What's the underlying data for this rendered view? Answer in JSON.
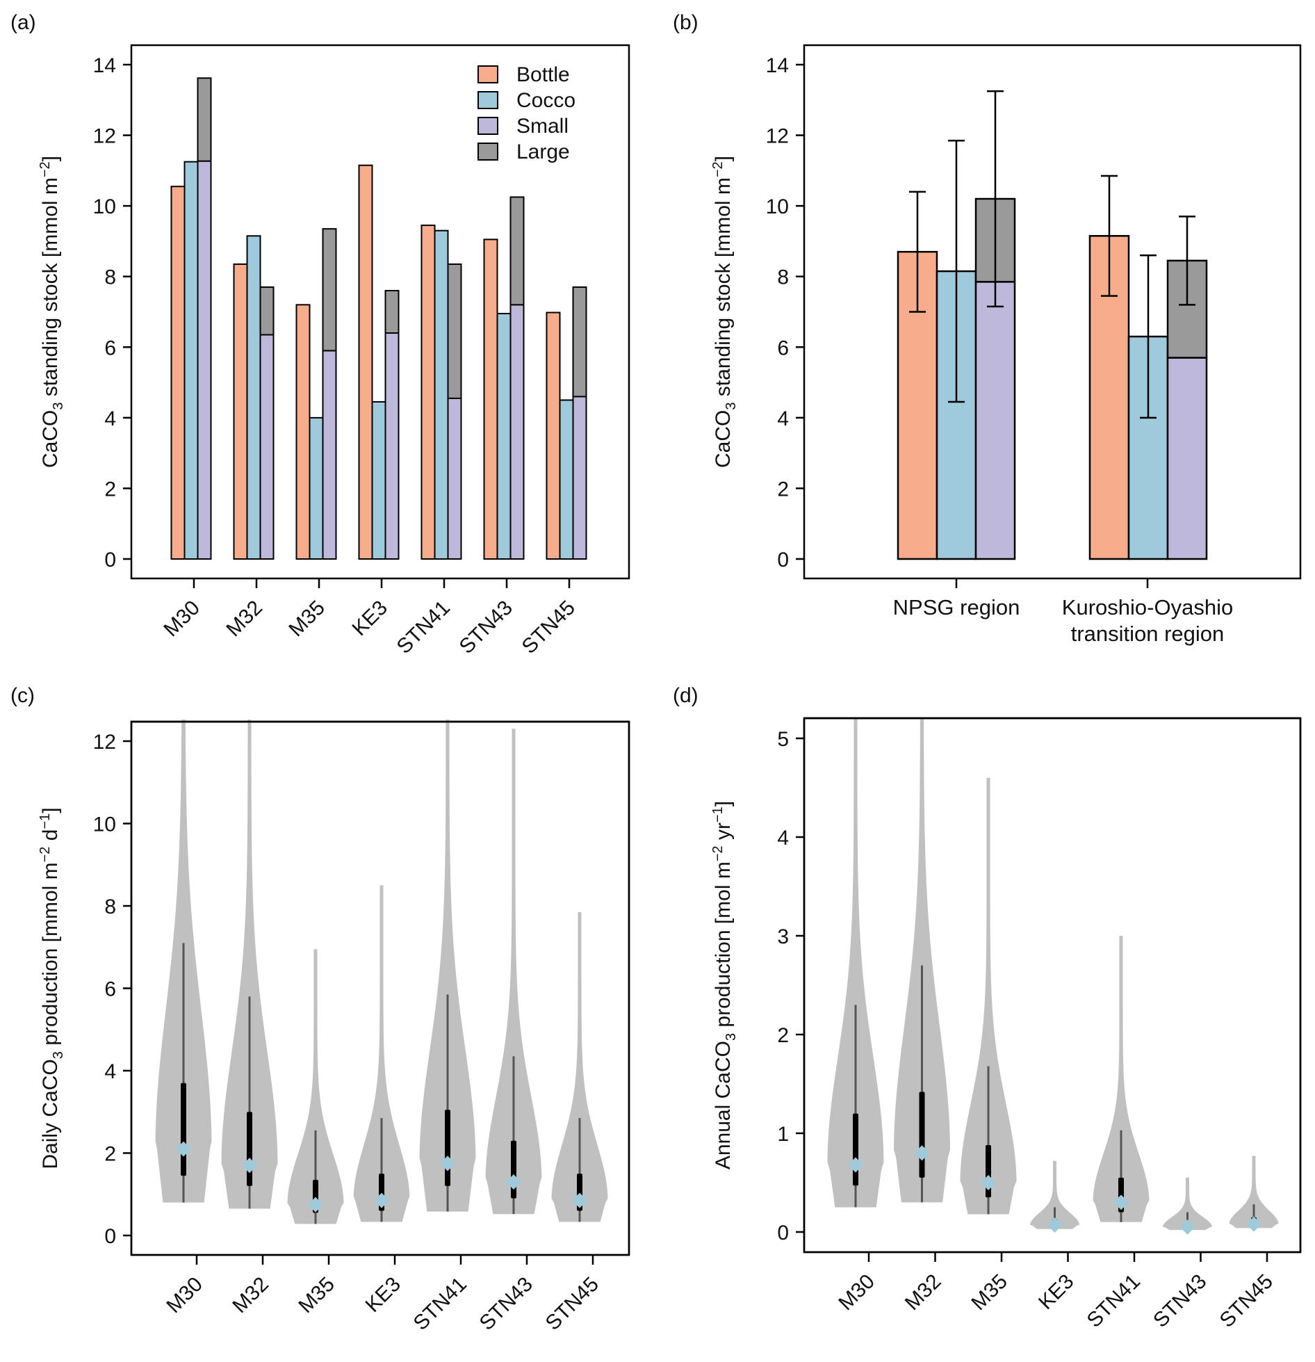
{
  "colors": {
    "Bottle": "#f7ad8c",
    "Cocco": "#9ecadc",
    "Small": "#beb8db",
    "Large": "#9a9a9a",
    "violin": "#c0c0c0",
    "median": "#9ecadc"
  },
  "chart_data": [
    {
      "panel": "(a)",
      "type": "bar",
      "ylabel": "CaCO3 standing stock [mmol m-2]",
      "ylabel_parts": {
        "pre": "CaCO",
        "sub": "3",
        "mid": " standing stock [mmol m",
        "sup": "−2",
        "post": "]"
      },
      "ylim": [
        0,
        14.5
      ],
      "yticks": [
        0,
        2,
        4,
        6,
        8,
        10,
        12,
        14
      ],
      "categories": [
        "M30",
        "M32",
        "M35",
        "KE3",
        "STN41",
        "STN43",
        "STN45"
      ],
      "legend": {
        "position": "top-right",
        "entries": [
          "Bottle",
          "Cocco",
          "Small",
          "Large"
        ]
      },
      "series": [
        {
          "name": "Bottle",
          "values": [
            10.55,
            8.35,
            7.2,
            11.15,
            9.45,
            9.05,
            6.98
          ]
        },
        {
          "name": "Cocco",
          "values": [
            11.25,
            9.15,
            4.0,
            4.45,
            9.3,
            6.95,
            4.5
          ]
        },
        {
          "name": "Small",
          "values": [
            11.27,
            6.35,
            5.9,
            6.4,
            4.55,
            7.2,
            4.6
          ]
        },
        {
          "name": "Large",
          "stacked_on": "Small",
          "values": [
            2.35,
            1.35,
            3.45,
            1.2,
            3.8,
            3.05,
            3.1
          ]
        }
      ]
    },
    {
      "panel": "(b)",
      "type": "bar",
      "ylabel_parts": {
        "pre": "CaCO",
        "sub": "3",
        "mid": " standing stock [mmol m",
        "sup": "−2",
        "post": "]"
      },
      "ylim": [
        0,
        14.5
      ],
      "yticks": [
        0,
        2,
        4,
        6,
        8,
        10,
        12,
        14
      ],
      "categories": [
        "NPSG region",
        "Kuroshio-Oyashio transition region"
      ],
      "category_lines": [
        [
          "NPSG region"
        ],
        [
          "Kuroshio-Oyashio",
          "transition region"
        ]
      ],
      "series": [
        {
          "name": "Bottle",
          "values": [
            8.7,
            9.15
          ],
          "err_low": [
            7.0,
            7.45
          ],
          "err_high": [
            10.4,
            10.85
          ]
        },
        {
          "name": "Cocco",
          "values": [
            8.15,
            6.3
          ],
          "err_low": [
            4.45,
            4.0
          ],
          "err_high": [
            11.85,
            8.6
          ]
        },
        {
          "name": "Small",
          "values": [
            7.85,
            5.7
          ]
        },
        {
          "name": "Large",
          "stacked_on": "Small",
          "values": [
            2.35,
            2.75
          ],
          "err_low": [
            7.15,
            7.2
          ],
          "err_high": [
            13.25,
            9.7
          ]
        }
      ]
    },
    {
      "panel": "(c)",
      "type": "violin",
      "ylabel_parts": {
        "pre": "Daily CaCO",
        "sub": "3",
        "mid": " production [mmol m",
        "sup": "−2",
        "mid2": " d",
        "sup2": "−1",
        "post": "]"
      },
      "ylim": [
        -0.35,
        12.5
      ],
      "yticks": [
        0,
        2,
        4,
        6,
        8,
        10,
        12
      ],
      "categories": [
        "M30",
        "M32",
        "M35",
        "KE3",
        "STN41",
        "STN43",
        "STN45"
      ],
      "stats": [
        {
          "min": 0.8,
          "q1": 1.45,
          "median": 2.1,
          "q3": 3.7,
          "whisker": 7.1,
          "max": 12.6,
          "width": 0.6
        },
        {
          "min": 0.65,
          "q1": 1.2,
          "median": 1.7,
          "q3": 3.0,
          "whisker": 5.8,
          "max": 12.6,
          "width": 0.6
        },
        {
          "min": 0.28,
          "q1": 0.55,
          "median": 0.75,
          "q3": 1.35,
          "whisker": 2.55,
          "max": 6.95,
          "width": 0.6
        },
        {
          "min": 0.33,
          "q1": 0.6,
          "median": 0.85,
          "q3": 1.5,
          "whisker": 2.85,
          "max": 8.5,
          "width": 0.6
        },
        {
          "min": 0.58,
          "q1": 1.2,
          "median": 1.75,
          "q3": 3.05,
          "whisker": 5.85,
          "max": 12.6,
          "width": 0.6
        },
        {
          "min": 0.52,
          "q1": 0.9,
          "median": 1.3,
          "q3": 2.3,
          "whisker": 4.35,
          "max": 12.3,
          "width": 0.6
        },
        {
          "min": 0.33,
          "q1": 0.6,
          "median": 0.85,
          "q3": 1.5,
          "whisker": 2.85,
          "max": 7.85,
          "width": 0.6
        }
      ]
    },
    {
      "panel": "(d)",
      "type": "violin",
      "ylabel_parts": {
        "pre": "Annual CaCO",
        "sub": "3",
        "mid": " production [mol m",
        "sup": "−2",
        "mid2": " yr",
        "sup2": "−1",
        "post": "]"
      },
      "ylim": [
        -0.15,
        5.2
      ],
      "yticks": [
        0,
        1,
        2,
        3,
        4,
        5
      ],
      "categories": [
        "M30",
        "M32",
        "M35",
        "KE3",
        "STN41",
        "STN43",
        "STN45"
      ],
      "stats": [
        {
          "min": 0.25,
          "q1": 0.47,
          "median": 0.68,
          "q3": 1.2,
          "whisker": 2.3,
          "max": 5.2,
          "width": 0.6
        },
        {
          "min": 0.3,
          "q1": 0.55,
          "median": 0.8,
          "q3": 1.42,
          "whisker": 2.7,
          "max": 5.2,
          "width": 0.6
        },
        {
          "min": 0.18,
          "q1": 0.35,
          "median": 0.5,
          "q3": 0.88,
          "whisker": 1.68,
          "max": 4.6,
          "width": 0.6
        },
        {
          "min": 0.03,
          "q1": 0.05,
          "median": 0.07,
          "q3": 0.13,
          "whisker": 0.25,
          "max": 0.72,
          "width": 0.4
        },
        {
          "min": 0.1,
          "q1": 0.2,
          "median": 0.3,
          "q3": 0.55,
          "whisker": 1.03,
          "max": 3.0,
          "width": 0.6
        },
        {
          "min": 0.02,
          "q1": 0.04,
          "median": 0.05,
          "q3": 0.1,
          "whisker": 0.2,
          "max": 0.55,
          "width": 0.4
        },
        {
          "min": 0.04,
          "q1": 0.06,
          "median": 0.08,
          "q3": 0.15,
          "whisker": 0.28,
          "max": 0.77,
          "width": 0.4
        }
      ]
    }
  ]
}
